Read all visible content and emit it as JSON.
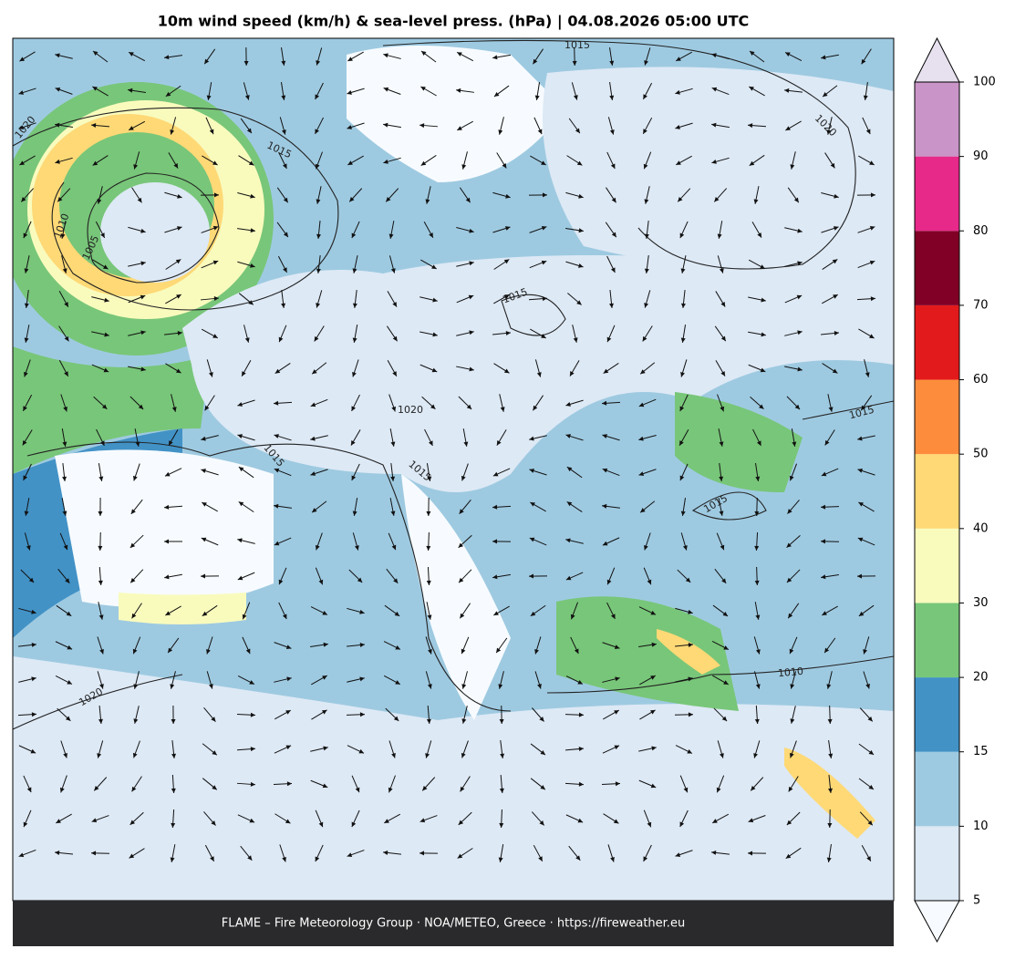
{
  "title": "10m wind speed (km/h) & sea-level press. (hPa)  |  04.08.2026 05:00 UTC",
  "footer": "FLAME – Fire Meteorology Group · NOA/METEO, Greece · https://fireweather.eu",
  "colorbar": {
    "bounds": [
      5,
      10,
      15,
      20,
      30,
      40,
      50,
      60,
      70,
      80,
      90,
      100
    ],
    "colors": [
      "#dde9f5",
      "#9ecae1",
      "#4292c6",
      "#78c679",
      "#f9fbbd",
      "#fed976",
      "#fd8d3c",
      "#e31a1c",
      "#800026",
      "#e7298a",
      "#c994c7"
    ],
    "under_color": "#f7fbff",
    "over_color": "#e7e1ef"
  },
  "contour_labels": [
    1015,
    1020,
    1015,
    1020,
    1010,
    1005,
    1015,
    1020,
    1015,
    1015,
    1015,
    1015,
    1010,
    1020
  ]
}
